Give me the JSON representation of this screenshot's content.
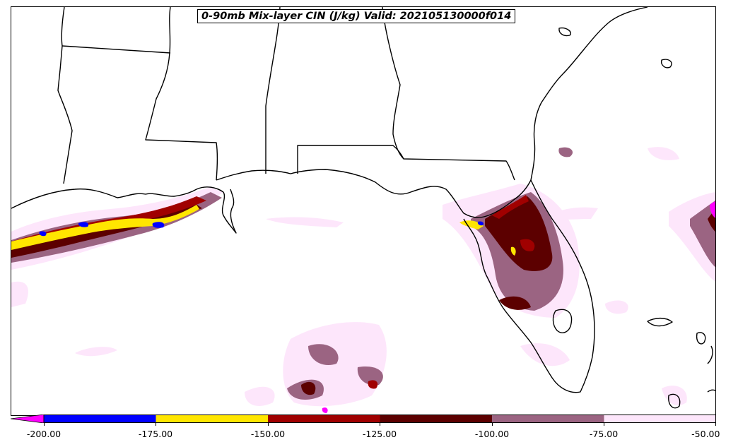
{
  "title": "0-90mb Mix-layer CIN (J/kg) Valid: 202105130000f014",
  "colorbar": {
    "extend": "min",
    "ticks": [
      "-200.00",
      "-175.00",
      "-150.00",
      "-125.00",
      "-100.00",
      "-75.00",
      "-50.00"
    ],
    "segments": [
      {
        "from": -200,
        "to": -175,
        "color": "#0000ff"
      },
      {
        "from": -175,
        "to": -150,
        "color": "#ffe600"
      },
      {
        "from": -150,
        "to": -125,
        "color": "#a00000"
      },
      {
        "from": -125,
        "to": -100,
        "color": "#5c0000"
      },
      {
        "from": -100,
        "to": -75,
        "color": "#9b6482"
      },
      {
        "from": -75,
        "to": -50,
        "color": "#fde6fb"
      }
    ],
    "extend_color": "#ff00ff"
  }
}
